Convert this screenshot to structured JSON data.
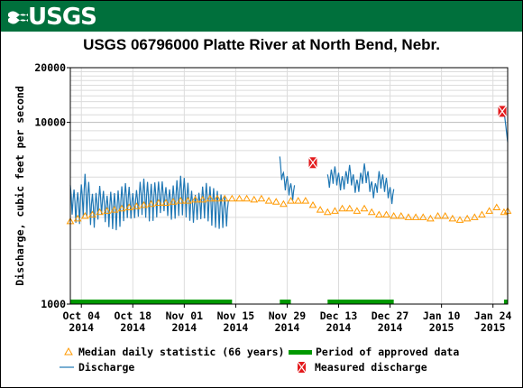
{
  "header": {
    "logo_text": "USGS"
  },
  "chart_data": {
    "type": "line",
    "title": "USGS 06796000 Platte River at North Bend, Nebr.",
    "ylabel": "Discharge, cubic feet per second",
    "yscale": "log",
    "ylim": [
      1000,
      20000
    ],
    "y_tick_labels": [
      "20000",
      "10000",
      "1000"
    ],
    "y_tick_values": [
      20000,
      10000,
      1000
    ],
    "xlim": [
      "2014-10-01",
      "2015-01-28"
    ],
    "x_ticks": [
      {
        "date": "2014-10-04",
        "l1": "Oct 04",
        "l2": "2014"
      },
      {
        "date": "2014-10-18",
        "l1": "Oct 18",
        "l2": "2014"
      },
      {
        "date": "2014-11-01",
        "l1": "Nov 01",
        "l2": "2014"
      },
      {
        "date": "2014-11-15",
        "l1": "Nov 15",
        "l2": "2014"
      },
      {
        "date": "2014-11-29",
        "l1": "Nov 29",
        "l2": "2014"
      },
      {
        "date": "2014-12-13",
        "l1": "Dec 13",
        "l2": "2014"
      },
      {
        "date": "2014-12-27",
        "l1": "Dec 27",
        "l2": "2014"
      },
      {
        "date": "2015-01-10",
        "l1": "Jan 10",
        "l2": "2015"
      },
      {
        "date": "2015-01-24",
        "l1": "Jan 24",
        "l2": "2015"
      }
    ],
    "grid": true,
    "colors": {
      "discharge": "#1f77b4",
      "median": "#ff9900",
      "approved": "#009900",
      "measured": "#e31a1c"
    },
    "series": [
      {
        "name": "Discharge",
        "segments": [
          {
            "start": "2014-10-01",
            "end": "2014-11-13",
            "points": [
              [
                "2014-10-01",
                3900
              ],
              [
                "2014-10-02",
                3600
              ],
              [
                "2014-10-03",
                3400
              ],
              [
                "2014-10-04",
                3700
              ],
              [
                "2014-10-05",
                4200
              ],
              [
                "2014-10-06",
                3800
              ],
              [
                "2014-10-07",
                3300
              ],
              [
                "2014-10-08",
                3400
              ],
              [
                "2014-10-09",
                3800
              ],
              [
                "2014-10-10",
                3600
              ],
              [
                "2014-10-11",
                3300
              ],
              [
                "2014-10-12",
                3400
              ],
              [
                "2014-10-13",
                3300
              ],
              [
                "2014-10-14",
                3400
              ],
              [
                "2014-10-15",
                3600
              ],
              [
                "2014-10-16",
                3800
              ],
              [
                "2014-10-17",
                3700
              ],
              [
                "2014-10-18",
                3500
              ],
              [
                "2014-10-19",
                3600
              ],
              [
                "2014-10-20",
                3900
              ],
              [
                "2014-10-21",
                4000
              ],
              [
                "2014-10-22",
                3800
              ],
              [
                "2014-10-23",
                3700
              ],
              [
                "2014-10-24",
                3800
              ],
              [
                "2014-10-25",
                3900
              ],
              [
                "2014-10-26",
                4000
              ],
              [
                "2014-10-27",
                3800
              ],
              [
                "2014-10-28",
                3600
              ],
              [
                "2014-10-29",
                3700
              ],
              [
                "2014-10-30",
                3900
              ],
              [
                "2014-10-31",
                4100
              ],
              [
                "2014-11-01",
                4000
              ],
              [
                "2014-11-02",
                3800
              ],
              [
                "2014-11-03",
                3500
              ],
              [
                "2014-11-04",
                3400
              ],
              [
                "2014-11-05",
                3500
              ],
              [
                "2014-11-06",
                3700
              ],
              [
                "2014-11-07",
                3800
              ],
              [
                "2014-11-08",
                3600
              ],
              [
                "2014-11-09",
                3500
              ],
              [
                "2014-11-10",
                3400
              ],
              [
                "2014-11-11",
                3300
              ],
              [
                "2014-11-12",
                3300
              ],
              [
                "2014-11-13",
                3200
              ]
            ]
          },
          {
            "start": "2014-11-27",
            "end": "2014-12-01",
            "points": [
              [
                "2014-11-27",
                5900
              ],
              [
                "2014-11-28",
                4800
              ],
              [
                "2014-11-29",
                4600
              ],
              [
                "2014-11-30",
                4200
              ],
              [
                "2014-12-01",
                4100
              ]
            ]
          },
          {
            "start": "2014-12-10",
            "end": "2014-12-28",
            "points": [
              [
                "2014-12-10",
                4700
              ],
              [
                "2014-12-11",
                5000
              ],
              [
                "2014-12-12",
                5200
              ],
              [
                "2014-12-13",
                4800
              ],
              [
                "2014-12-14",
                4600
              ],
              [
                "2014-12-15",
                4900
              ],
              [
                "2014-12-16",
                5300
              ],
              [
                "2014-12-17",
                4700
              ],
              [
                "2014-12-18",
                4400
              ],
              [
                "2014-12-19",
                4800
              ],
              [
                "2014-12-20",
                5400
              ],
              [
                "2014-12-21",
                4900
              ],
              [
                "2014-12-22",
                4300
              ],
              [
                "2014-12-23",
                4200
              ],
              [
                "2014-12-24",
                4900
              ],
              [
                "2014-12-25",
                4700
              ],
              [
                "2014-12-26",
                4500
              ],
              [
                "2014-12-27",
                4000
              ],
              [
                "2014-12-28",
                3900
              ]
            ]
          },
          {
            "start": "2015-01-28",
            "end": "2015-01-28",
            "points": [
              [
                "2015-01-28",
                11500
              ],
              [
                "2015-01-28",
                9500
              ],
              [
                "2015-01-28",
                7800
              ]
            ]
          }
        ]
      },
      {
        "name": "Median daily statistic (66 years)",
        "points": [
          [
            "2014-10-01",
            2850
          ],
          [
            "2014-10-03",
            2950
          ],
          [
            "2014-10-05",
            3050
          ],
          [
            "2014-10-07",
            3100
          ],
          [
            "2014-10-09",
            3200
          ],
          [
            "2014-10-11",
            3250
          ],
          [
            "2014-10-13",
            3300
          ],
          [
            "2014-10-15",
            3350
          ],
          [
            "2014-10-17",
            3400
          ],
          [
            "2014-10-19",
            3450
          ],
          [
            "2014-10-21",
            3500
          ],
          [
            "2014-10-23",
            3550
          ],
          [
            "2014-10-25",
            3600
          ],
          [
            "2014-10-27",
            3600
          ],
          [
            "2014-10-29",
            3650
          ],
          [
            "2014-10-31",
            3700
          ],
          [
            "2014-11-02",
            3700
          ],
          [
            "2014-11-04",
            3750
          ],
          [
            "2014-11-06",
            3750
          ],
          [
            "2014-11-08",
            3800
          ],
          [
            "2014-11-10",
            3800
          ],
          [
            "2014-11-12",
            3800
          ],
          [
            "2014-11-14",
            3800
          ],
          [
            "2014-11-16",
            3800
          ],
          [
            "2014-11-18",
            3800
          ],
          [
            "2014-11-20",
            3750
          ],
          [
            "2014-11-22",
            3800
          ],
          [
            "2014-11-24",
            3700
          ],
          [
            "2014-11-26",
            3650
          ],
          [
            "2014-11-28",
            3550
          ],
          [
            "2014-11-30",
            3700
          ],
          [
            "2014-12-02",
            3700
          ],
          [
            "2014-12-04",
            3700
          ],
          [
            "2014-12-06",
            3500
          ],
          [
            "2014-12-08",
            3300
          ],
          [
            "2014-12-10",
            3200
          ],
          [
            "2014-12-12",
            3250
          ],
          [
            "2014-12-14",
            3350
          ],
          [
            "2014-12-16",
            3350
          ],
          [
            "2014-12-18",
            3250
          ],
          [
            "2014-12-20",
            3350
          ],
          [
            "2014-12-22",
            3200
          ],
          [
            "2014-12-24",
            3100
          ],
          [
            "2014-12-26",
            3100
          ],
          [
            "2014-12-28",
            3050
          ],
          [
            "2014-12-30",
            3050
          ],
          [
            "2015-01-01",
            3000
          ],
          [
            "2015-01-03",
            3000
          ],
          [
            "2015-01-05",
            3000
          ],
          [
            "2015-01-07",
            2950
          ],
          [
            "2015-01-09",
            3050
          ],
          [
            "2015-01-11",
            3050
          ],
          [
            "2015-01-13",
            2950
          ],
          [
            "2015-01-15",
            2900
          ],
          [
            "2015-01-17",
            2950
          ],
          [
            "2015-01-19",
            3000
          ],
          [
            "2015-01-21",
            3100
          ],
          [
            "2015-01-23",
            3250
          ],
          [
            "2015-01-25",
            3400
          ],
          [
            "2015-01-27",
            3200
          ],
          [
            "2015-01-28",
            3250
          ]
        ]
      },
      {
        "name": "Measured discharge",
        "points": [
          [
            "2014-12-06",
            6000
          ],
          [
            "2015-01-28",
            11500
          ]
        ]
      }
    ],
    "approved_periods": [
      [
        "2014-10-01",
        "2014-11-14"
      ],
      [
        "2014-11-27",
        "2014-11-30"
      ],
      [
        "2014-12-10",
        "2014-12-28"
      ],
      [
        "2015-01-27",
        "2015-01-28"
      ]
    ],
    "legend": {
      "placement": "bottom",
      "items": [
        {
          "key": "median",
          "label": "Median daily statistic (66 years)"
        },
        {
          "key": "approved",
          "label": "Period of approved data"
        },
        {
          "key": "discharge",
          "label": "Discharge"
        },
        {
          "key": "measured",
          "label": "Measured discharge"
        }
      ]
    }
  }
}
